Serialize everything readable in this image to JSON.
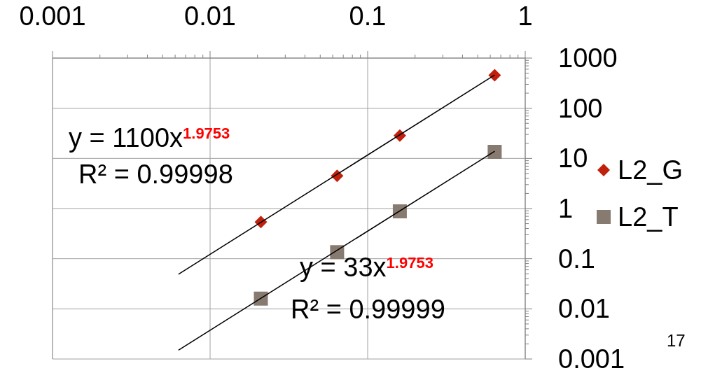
{
  "chart_data": {
    "type": "scatter",
    "log": "xy",
    "xlim": [
      0.001,
      1
    ],
    "xticks": [
      0.001,
      0.01,
      0.1,
      1
    ],
    "ylim": [
      0.001,
      1000
    ],
    "yticks": [
      0.001,
      0.01,
      0.1,
      1,
      10,
      100,
      1000
    ],
    "grid": true,
    "legend": "right",
    "series": [
      {
        "name": "L2_G",
        "color": "#c0200c",
        "marker": "diamond",
        "x": [
          0.021,
          0.064,
          0.16,
          0.64
        ],
        "values": [
          0.54,
          4.5,
          28.5,
          454
        ]
      },
      {
        "name": "L2_T",
        "color": "#877a70",
        "marker": "square",
        "x": [
          0.021,
          0.064,
          0.16,
          0.64
        ],
        "values": [
          0.016,
          0.135,
          0.88,
          13.5
        ]
      },
      {
        "type": "line",
        "color": "#000000",
        "marker": "none",
        "x": [
          0.0063,
          0.64
        ],
        "values": [
          0.049,
          460
        ]
      },
      {
        "type": "line",
        "color": "#000000",
        "marker": "none",
        "x": [
          0.0063,
          0.64
        ],
        "values": [
          0.0015,
          13.9
        ]
      }
    ],
    "annotations": [
      "y = 1100x$^{1.9753}$",
      "R² = 0.99998",
      "y = 33x$^{1.9753}$",
      "R² = 0.99999",
      "17"
    ]
  }
}
